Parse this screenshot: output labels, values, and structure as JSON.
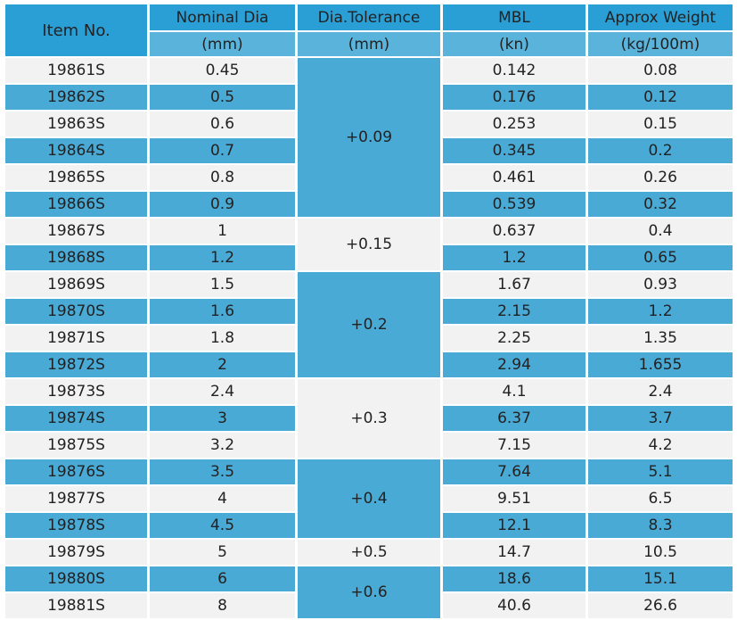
{
  "colors": {
    "header": "#2a9fd6",
    "unit_row": "#5ab3da",
    "row_light": "#f2f2f2",
    "row_blue": "#4aaad6"
  },
  "header": {
    "item": "Item No.",
    "nominal_dia": "Nominal Dia",
    "dia_tolerance": "Dia.Tolerance",
    "mbl": "MBL",
    "approx_weight": "Approx Weight"
  },
  "units": {
    "nominal_dia": "(mm)",
    "dia_tolerance": "(mm)",
    "mbl": "(kn)",
    "approx_weight": "(kg/100m)"
  },
  "rows": [
    {
      "item": "19861S",
      "dia": "0.45",
      "mbl": "0.142",
      "weight": "0.08"
    },
    {
      "item": "19862S",
      "dia": "0.5",
      "mbl": "0.176",
      "weight": "0.12"
    },
    {
      "item": "19863S",
      "dia": "0.6",
      "mbl": "0.253",
      "weight": "0.15"
    },
    {
      "item": "19864S",
      "dia": "0.7",
      "mbl": "0.345",
      "weight": "0.2"
    },
    {
      "item": "19865S",
      "dia": "0.8",
      "mbl": "0.461",
      "weight": "0.26"
    },
    {
      "item": "19866S",
      "dia": "0.9",
      "mbl": "0.539",
      "weight": "0.32"
    },
    {
      "item": "19867S",
      "dia": "1",
      "mbl": "0.637",
      "weight": "0.4"
    },
    {
      "item": "19868S",
      "dia": "1.2",
      "mbl": "1.2",
      "weight": "0.65"
    },
    {
      "item": "19869S",
      "dia": "1.5",
      "mbl": "1.67",
      "weight": "0.93"
    },
    {
      "item": "19870S",
      "dia": "1.6",
      "mbl": "2.15",
      "weight": "1.2"
    },
    {
      "item": "19871S",
      "dia": "1.8",
      "mbl": "2.25",
      "weight": "1.35"
    },
    {
      "item": "19872S",
      "dia": "2",
      "mbl": "2.94",
      "weight": "1.655"
    },
    {
      "item": "19873S",
      "dia": "2.4",
      "mbl": "4.1",
      "weight": "2.4"
    },
    {
      "item": "19874S",
      "dia": "3",
      "mbl": "6.37",
      "weight": "3.7"
    },
    {
      "item": "19875S",
      "dia": "3.2",
      "mbl": "7.15",
      "weight": "4.2"
    },
    {
      "item": "19876S",
      "dia": "3.5",
      "mbl": "7.64",
      "weight": "5.1"
    },
    {
      "item": "19877S",
      "dia": "4",
      "mbl": "9.51",
      "weight": "6.5"
    },
    {
      "item": "19878S",
      "dia": "4.5",
      "mbl": "12.1",
      "weight": "8.3"
    },
    {
      "item": "19879S",
      "dia": "5",
      "mbl": "14.7",
      "weight": "10.5"
    },
    {
      "item": "19880S",
      "dia": "6",
      "mbl": "18.6",
      "weight": "15.1"
    },
    {
      "item": "19881S",
      "dia": "8",
      "mbl": "40.6",
      "weight": "26.6"
    }
  ],
  "tolerance_groups": [
    {
      "value": "+0.09",
      "start_row": 0,
      "row_count": 6,
      "shade": "blue"
    },
    {
      "value": "+0.15",
      "start_row": 6,
      "row_count": 2,
      "shade": "light"
    },
    {
      "value": "+0.2",
      "start_row": 8,
      "row_count": 4,
      "shade": "blue"
    },
    {
      "value": "+0.3",
      "start_row": 12,
      "row_count": 3,
      "shade": "light"
    },
    {
      "value": "+0.4",
      "start_row": 15,
      "row_count": 3,
      "shade": "blue"
    },
    {
      "value": "+0.5",
      "start_row": 18,
      "row_count": 1,
      "shade": "light"
    },
    {
      "value": "+0.6",
      "start_row": 19,
      "row_count": 2,
      "shade": "blue"
    }
  ]
}
